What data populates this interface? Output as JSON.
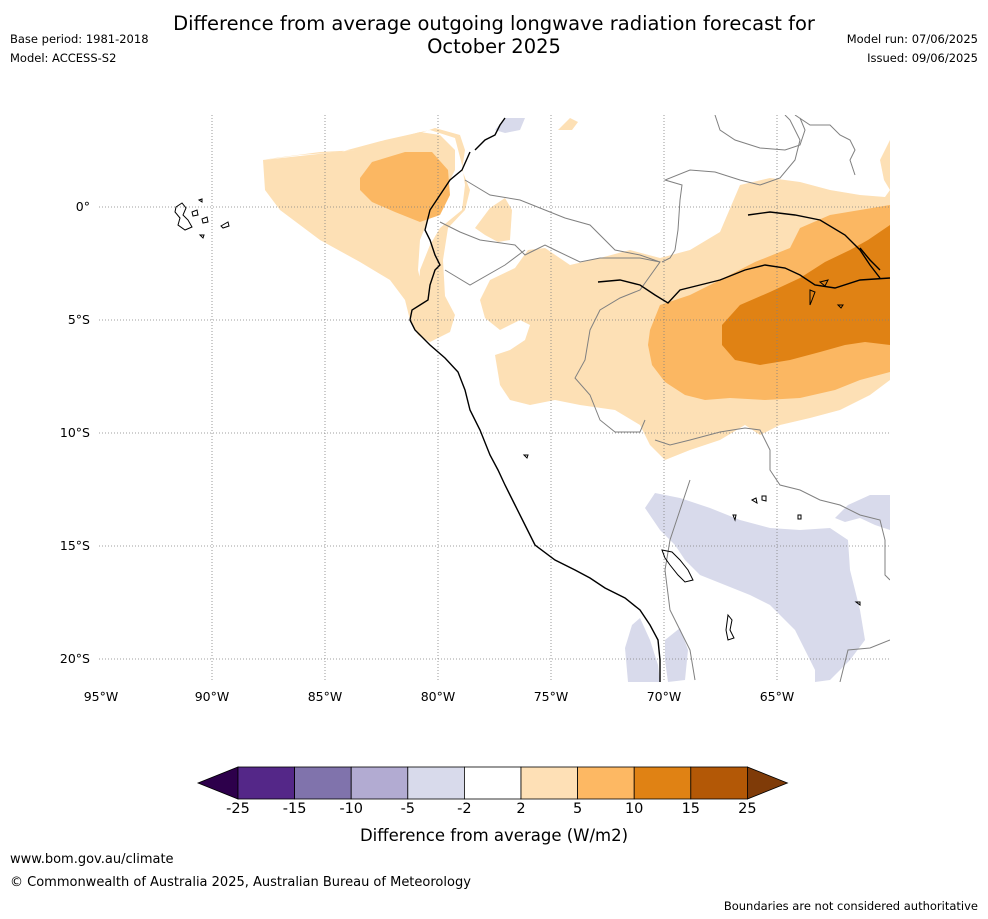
{
  "header": {
    "title_line1": "Difference from average outgoing longwave radiation forecast for",
    "title_line2": "October 2025",
    "base_period": "Base period: 1981-2018",
    "model": "Model: ACCESS-S2",
    "model_run": "Model run: 07/06/2025",
    "issued": "Issued: 09/06/2025"
  },
  "map": {
    "latitude_labels": [
      "0°",
      "5°S",
      "10°S",
      "15°S",
      "20°S"
    ],
    "longitude_labels": [
      "95°W",
      "90°W",
      "85°W",
      "80°W",
      "75°W",
      "70°W",
      "65°W"
    ],
    "colors": {
      "pos_2_5": "#fde0b5",
      "pos_5_10": "#fbb762",
      "pos_10_15": "#e08214",
      "neg_2_5": "#d8daeb",
      "coast": "#000000",
      "border": "#808080"
    }
  },
  "colorbar": {
    "title": "Difference from average (W/m2)",
    "ticks": [
      "-25",
      "-15",
      "-10",
      "-5",
      "-2",
      "2",
      "5",
      "10",
      "15",
      "25"
    ],
    "colors": [
      "#2d004b",
      "#542788",
      "#8073ac",
      "#b2abd2",
      "#d8daeb",
      "#ffffff",
      "#fee0b6",
      "#fdb863",
      "#e08214",
      "#b35806",
      "#7f3b08"
    ]
  },
  "footer": {
    "url": "www.bom.gov.au/climate",
    "copyright": "© Commonwealth of Australia 2025, Australian Bureau of Meteorology",
    "disclaimer": "Boundaries are not considered authoritative"
  }
}
